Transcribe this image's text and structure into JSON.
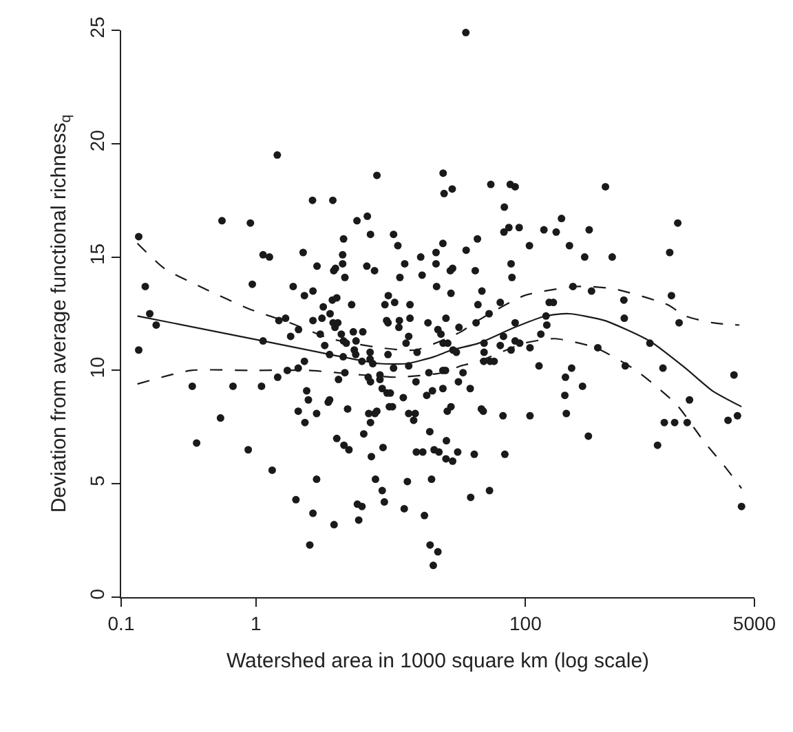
{
  "chart_data": {
    "type": "scatter",
    "xlabel": "Watershed area in 1000 square km (log scale)",
    "ylabel": "Deviation from average functional richness$_{q}$",
    "log": "x",
    "xlim": [
      0.1,
      5000
    ],
    "xticks": [
      0.1,
      1,
      100,
      5000
    ],
    "ylim": [
      0,
      25
    ],
    "yticks": [
      0,
      5,
      10,
      15,
      20,
      25
    ],
    "series": [
      {
        "marker": "circle",
        "color": "#1a1a1a",
        "x": [
          1.44,
          7.9,
          24.5,
          24.9,
          28.6,
          2.63,
          3.72,
          0.56,
          0.91,
          5.62,
          6.71,
          0.135,
          7.08,
          10.5,
          11.3,
          4.47,
          1.13,
          1.26,
          2.24,
          4.4,
          24.4,
          16.7,
          21.7,
          2.84,
          3.78,
          3.89,
          4.4,
          6.65,
          7.59,
          12.7,
          21.7,
          27.7,
          28.8,
          0.151,
          0.94,
          1.89,
          2.29,
          2.65,
          4.57,
          11.7,
          17.1,
          21.9,
          28.0,
          3.69,
          3.98,
          9.6,
          9.06,
          10.7,
          13.9,
          5.13,
          3.16,
          3.55,
          0.163,
          25.7,
          13.9,
          9.33,
          36.1,
          55.3,
          77.1,
          83.8,
          392,
          69.7,
          185,
          1349,
          75.3,
          69.2,
          89.8,
          137,
          169,
          297,
          44.0,
          36.3,
          107,
          212,
          1175,
          275,
          440,
          78.2,
          79.4,
          42.4,
          47.5,
          44.4,
          65.0,
          150,
          161,
          225,
          309,
          537,
          1211,
          541,
          1380,
          142,
          53.7,
          0.182,
          0.135,
          0.337,
          0.676,
          1.1,
          0.546,
          0.363,
          0.877,
          1.32,
          1.13,
          1.48,
          1.66,
          2.07,
          1.81,
          2.65,
          3.09,
          11.6,
          32.1,
          18.9,
          3.74,
          4.05,
          3.86,
          3.0,
          4.3,
          4.47,
          4.68,
          5.28,
          6.21,
          5.53,
          5.37,
          5.5,
          3.24,
          3.52,
          4.44,
          6.12,
          7.03,
          7.03,
          7.36,
          9.55,
          11.5,
          13.6,
          13.0,
          15.7,
          9.55,
          10.5,
          13.6,
          22.4,
          23.6,
          24.5,
          26.5,
          29.0,
          30.7,
          2.29,
          2.06,
          1.71,
          1.45,
          4.57,
          4.1,
          6.81,
          7.08,
          8.32,
          8.32,
          8.65,
          9.4,
          9.93,
          15.4,
          19.2,
          24.4,
          25.5,
          31.8,
          20.4,
          18.5,
          24.4,
          12.4,
          2.38,
          2.45,
          3.44,
          3.52,
          4.79,
          2.06,
          2.82,
          2.31,
          6.87,
          7.64,
          7.89,
          7.08,
          9.77,
          10.3,
          13.6,
          15.2,
          14.8,
          26.3,
          28.0,
          6.31,
          19.5,
          3.98,
          4.5,
          4.9,
          7.19,
          8.77,
          15.5,
          17.3,
          21.0,
          22.8,
          25.9,
          31.4,
          25.7,
          28.8,
          2.82,
          7.71,
          13.3,
          20.1,
          8.65,
          8.97,
          5.66,
          6.12,
          12.6,
          17.8,
          1.98,
          2.65,
          3.8,
          5.79,
          2.51,
          19.6,
          22.4,
          20.7,
          43.0,
          83.8,
          144,
          130,
          49.3,
          49.3,
          65.0,
          68.7,
          83.8,
          90.6,
          78.2,
          108,
          49.0,
          54.6,
          58.5,
          34.4,
          38.9,
          126,
          220,
          198,
          196,
          201,
          265,
          344,
          838,
          550,
          1047,
          3524,
          1648,
          1072,
          1279,
          1585,
          3184,
          3741,
          955,
          293,
          47.1,
          48.6,
          68.1,
          108,
          41.7,
          70.3,
          39.2,
          54.1,
          4009
        ],
        "values": [
          19.5,
          18.6,
          18.7,
          17.8,
          18.0,
          17.5,
          17.5,
          16.6,
          16.5,
          16.6,
          16.8,
          15.9,
          16.0,
          16.0,
          15.5,
          15.8,
          15.1,
          15.0,
          15.2,
          15.1,
          15.6,
          15.0,
          15.2,
          14.6,
          14.4,
          14.5,
          14.7,
          14.6,
          14.4,
          14.7,
          14.7,
          14.4,
          14.5,
          13.7,
          13.8,
          13.7,
          13.3,
          13.5,
          14.1,
          14.1,
          14.2,
          13.7,
          13.4,
          13.1,
          13.2,
          13.3,
          12.9,
          13.0,
          12.9,
          12.9,
          12.8,
          12.5,
          12.5,
          12.3,
          12.3,
          12.2,
          24.9,
          18.2,
          18.2,
          18.1,
          18.1,
          17.2,
          16.7,
          16.5,
          16.3,
          16.1,
          16.3,
          16.2,
          16.1,
          16.2,
          15.8,
          15.3,
          15.5,
          15.5,
          15.2,
          15.0,
          15.0,
          14.7,
          14.1,
          14.4,
          13.5,
          12.9,
          13.0,
          13.0,
          13.0,
          13.7,
          13.5,
          13.1,
          13.3,
          12.3,
          12.1,
          12.4,
          12.5,
          12.0,
          10.9,
          9.3,
          9.3,
          9.3,
          7.9,
          6.8,
          6.5,
          5.6,
          11.3,
          12.2,
          12.3,
          11.8,
          11.5,
          12.2,
          12.3,
          12.2,
          11.9,
          12.1,
          12.1,
          12.1,
          11.9,
          11.6,
          11.6,
          11.3,
          11.2,
          11.7,
          11.7,
          11.3,
          10.9,
          10.7,
          11.1,
          10.7,
          10.6,
          10.4,
          10.8,
          10.5,
          10.3,
          12.1,
          11.9,
          11.5,
          11.2,
          10.8,
          10.7,
          10.1,
          10.2,
          11.8,
          11.6,
          11.2,
          11.2,
          10.9,
          10.8,
          10.4,
          10.1,
          10.0,
          9.7,
          9.9,
          9.6,
          9.7,
          9.5,
          9.8,
          9.6,
          9.2,
          9.0,
          9.0,
          9.5,
          9.9,
          10.0,
          10.0,
          9.5,
          9.1,
          8.9,
          9.2,
          8.8,
          9.1,
          8.7,
          8.6,
          8.7,
          8.3,
          8.2,
          8.1,
          7.7,
          8.1,
          8.1,
          8.2,
          7.7,
          8.4,
          8.4,
          8.1,
          8.1,
          7.8,
          8.2,
          8.4,
          7.2,
          7.3,
          7.0,
          6.7,
          6.5,
          6.2,
          6.6,
          6.4,
          6.4,
          6.5,
          6.4,
          6.9,
          6.4,
          6.1,
          6.0,
          5.2,
          5.2,
          5.1,
          5.2,
          4.7,
          4.2,
          4.1,
          4.0,
          3.9,
          3.6,
          4.3,
          3.7,
          3.2,
          3.4,
          2.3,
          2.3,
          2.0,
          1.4,
          12.1,
          12.1,
          12.0,
          11.6,
          11.2,
          10.8,
          11.1,
          11.5,
          11.3,
          11.2,
          10.9,
          11.0,
          10.4,
          10.4,
          10.4,
          9.9,
          9.2,
          10.2,
          10.1,
          9.7,
          8.9,
          8.1,
          9.3,
          11.0,
          11.2,
          10.2,
          10.1,
          9.8,
          8.7,
          7.7,
          7.7,
          7.7,
          7.8,
          8.0,
          6.7,
          7.1,
          8.3,
          8.2,
          8.0,
          8.0,
          6.3,
          6.3,
          4.4,
          4.7,
          4.0
        ]
      },
      {
        "type": "line",
        "marker": "none",
        "line_style": "solid",
        "color": "#1a1a1a",
        "x": [
          0.132,
          1.13,
          3.57,
          8.32,
          13.2,
          20.9,
          28.4,
          45.0,
          83.2,
          142,
          209,
          386,
          832,
          1538,
          2438,
          4009
        ],
        "values": [
          12.4,
          11.3,
          10.7,
          10.3,
          10.3,
          10.6,
          10.9,
          11.2,
          11.9,
          12.4,
          12.5,
          12.2,
          11.3,
          10.1,
          9.1,
          8.4
        ]
      },
      {
        "type": "line",
        "marker": "none",
        "line_style": "dashed",
        "color": "#1a1a1a",
        "x": [
          0.132,
          0.209,
          0.417,
          0.9,
          1.79,
          3.57,
          8.32,
          15.3,
          33.1,
          41.7,
          98.0,
          244,
          449,
          1130,
          1538,
          2438,
          3864
        ],
        "values": [
          15.6,
          14.5,
          13.6,
          12.7,
          12.1,
          11.4,
          11.0,
          10.9,
          11.7,
          12.1,
          13.3,
          13.7,
          13.6,
          12.9,
          12.4,
          12.1,
          12.0
        ]
      },
      {
        "type": "line",
        "marker": "none",
        "line_style": "dashed",
        "color": "#1a1a1a",
        "x": [
          0.132,
          0.331,
          0.9,
          2.44,
          6.12,
          11.3,
          24.4,
          33.1,
          45.0,
          98.0,
          166,
          331,
          661,
          1318,
          2089,
          3069,
          4009
        ],
        "values": [
          9.4,
          10.0,
          10.0,
          10.0,
          9.8,
          9.7,
          9.9,
          10.2,
          10.4,
          11.2,
          11.4,
          11.0,
          10.0,
          8.5,
          6.9,
          5.7,
          4.8
        ]
      }
    ]
  }
}
